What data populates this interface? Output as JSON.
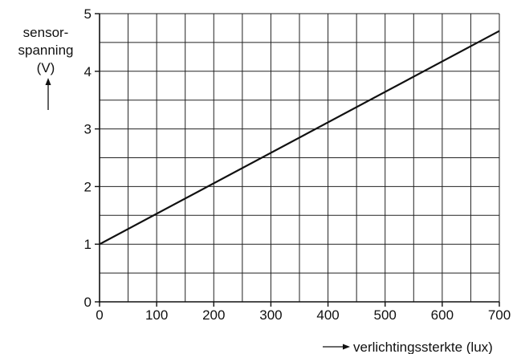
{
  "chart_data": {
    "type": "line",
    "xlabel": "verlichtingssterkte (lux)",
    "ylabel_lines": [
      "sensor-",
      "spanning",
      "(V)"
    ],
    "xlim": [
      0,
      700
    ],
    "ylim": [
      0,
      5
    ],
    "x_ticks": [
      0,
      100,
      200,
      300,
      400,
      500,
      600,
      700
    ],
    "y_ticks": [
      0,
      1,
      2,
      3,
      4,
      5
    ],
    "x_minor_step": 50,
    "y_minor_step": 0.5,
    "grid": true,
    "series": [
      {
        "x": [
          0,
          700
        ],
        "y": [
          1.0,
          4.7
        ]
      }
    ]
  }
}
